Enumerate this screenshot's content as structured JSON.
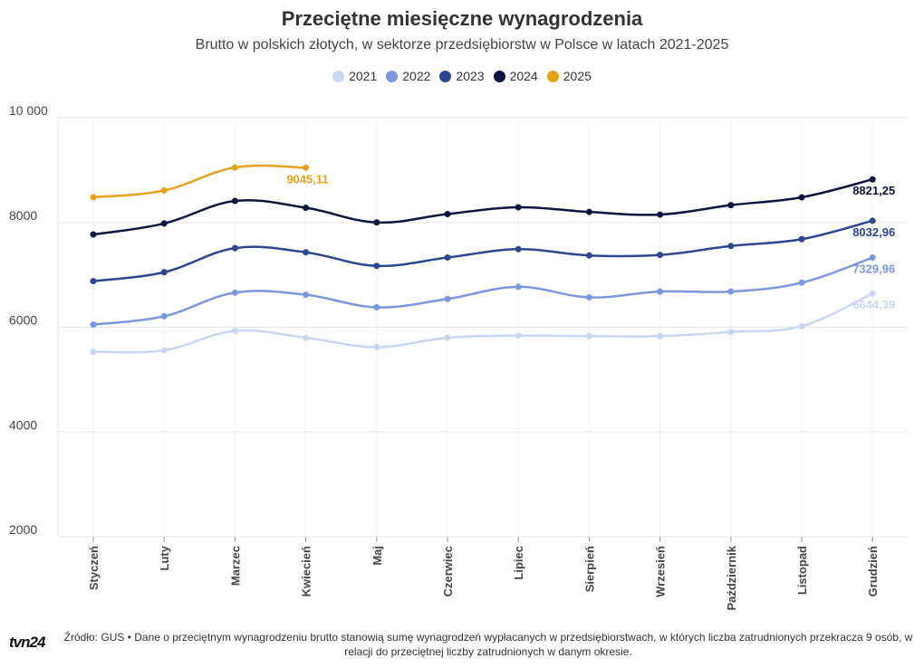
{
  "header": {
    "title": "Przeciętne miesięczne wynagrodzenia",
    "subtitle": "Brutto w polskich złotych, w sektorze przedsiębiorstw w Polsce w latach 2021-2025"
  },
  "footer": {
    "logo": "tvn24",
    "source": "Źródło: GUS • Dane o przeciętnym wynagrodzeniu brutto stanowią sumę wynagrodzeń wypłacanych w przedsiębiorstwach, w których liczba zatrudnionych przekracza 9 osób, w relacji do przeciętnej liczby zatrudnionych w danym okresie."
  },
  "chart_data": {
    "type": "line",
    "title": "Przeciętne miesięczne wynagrodzenia",
    "xlabel": "",
    "ylabel": "",
    "ylim": [
      2000,
      10000
    ],
    "yticks": [
      2000,
      4000,
      6000,
      8000,
      10000
    ],
    "ytick_labels": [
      "2000",
      "4000",
      "6000",
      "8000",
      "10 000"
    ],
    "categories": [
      "Styczeń",
      "Luty",
      "Marzec",
      "Kwiecień",
      "Maj",
      "Czerwiec",
      "Lipiec",
      "Sierpień",
      "Wrzesień",
      "Październik",
      "Listopad",
      "Grudzień"
    ],
    "legend_position": "top-center",
    "series": [
      {
        "name": "2021",
        "color": "#c9d6f2",
        "label": "6644,39",
        "values": [
          5530,
          5560,
          5930,
          5800,
          5620,
          5800,
          5840,
          5830,
          5830,
          5910,
          6020,
          6644.39
        ]
      },
      {
        "name": "2022",
        "color": "#7a97e0",
        "label": "7329,96",
        "values": [
          6050,
          6210,
          6660,
          6620,
          6380,
          6540,
          6770,
          6570,
          6680,
          6680,
          6850,
          7329.96
        ]
      },
      {
        "name": "2023",
        "color": "#2d4690",
        "label": "8032,96",
        "values": [
          6880,
          7050,
          7510,
          7430,
          7170,
          7330,
          7490,
          7370,
          7380,
          7550,
          7680,
          8032.96
        ]
      },
      {
        "name": "2024",
        "color": "#0c1640",
        "label": "8821,25",
        "values": [
          7770,
          7980,
          8410,
          8280,
          8000,
          8160,
          8290,
          8200,
          8150,
          8330,
          8480,
          8821.25
        ]
      },
      {
        "name": "2025",
        "color": "#e8a21a",
        "label": "9045,11",
        "values": [
          8480,
          8610,
          9050,
          9045.11,
          null,
          null,
          null,
          null,
          null,
          null,
          null,
          null
        ]
      }
    ]
  }
}
